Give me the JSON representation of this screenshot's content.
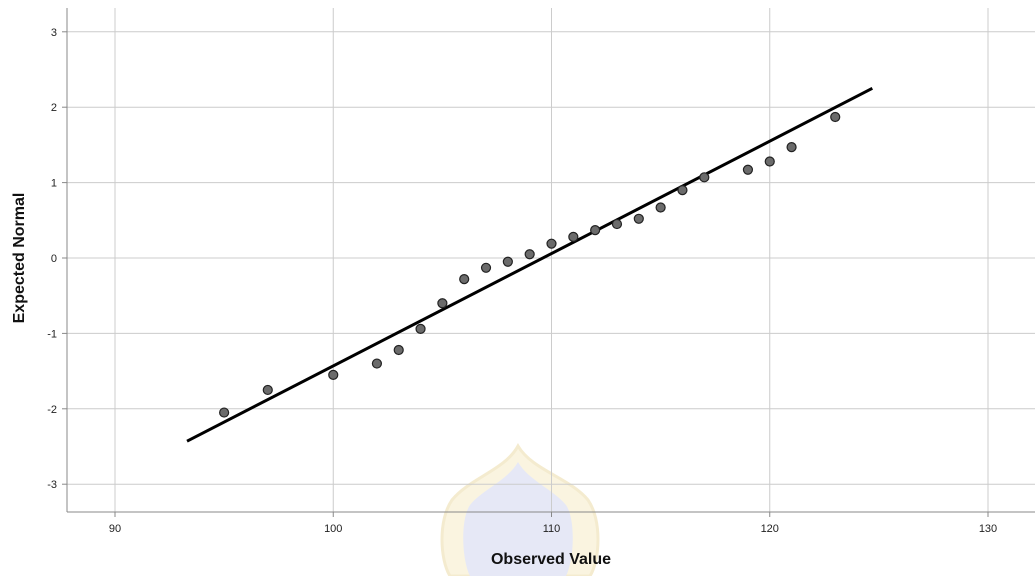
{
  "chart_data": {
    "type": "scatter",
    "title": "",
    "xlabel": "Observed Value",
    "ylabel": "Expected Normal",
    "xlim": [
      88,
      132
    ],
    "ylim": [
      -3.3,
      3.3
    ],
    "x_ticks": [
      90,
      100,
      110,
      120,
      130
    ],
    "y_ticks": [
      3,
      2,
      1,
      0,
      -1,
      -2,
      -3
    ],
    "grid": true,
    "legend": "none",
    "series": [
      {
        "points": [
          {
            "x": 95,
            "y": -2.05
          },
          {
            "x": 97,
            "y": -1.75
          },
          {
            "x": 100,
            "y": -1.55
          },
          {
            "x": 102,
            "y": -1.4
          },
          {
            "x": 103,
            "y": -1.22
          },
          {
            "x": 104,
            "y": -0.94
          },
          {
            "x": 105,
            "y": -0.6
          },
          {
            "x": 106,
            "y": -0.28
          },
          {
            "x": 107,
            "y": -0.13
          },
          {
            "x": 108,
            "y": -0.05
          },
          {
            "x": 109,
            "y": 0.05
          },
          {
            "x": 110,
            "y": 0.19
          },
          {
            "x": 111,
            "y": 0.28
          },
          {
            "x": 112,
            "y": 0.37
          },
          {
            "x": 113,
            "y": 0.45
          },
          {
            "x": 114,
            "y": 0.52
          },
          {
            "x": 115,
            "y": 0.67
          },
          {
            "x": 116,
            "y": 0.9
          },
          {
            "x": 117,
            "y": 1.07
          },
          {
            "x": 119,
            "y": 1.17
          },
          {
            "x": 120,
            "y": 1.28
          },
          {
            "x": 121,
            "y": 1.47
          },
          {
            "x": 123,
            "y": 1.87
          }
        ],
        "color": "#6b6b6b"
      }
    ],
    "reference_line": {
      "x": [
        93.3,
        124.7
      ],
      "y": [
        -2.43,
        2.25
      ],
      "color": "#000000"
    },
    "gridline_color": "#cccccc"
  }
}
